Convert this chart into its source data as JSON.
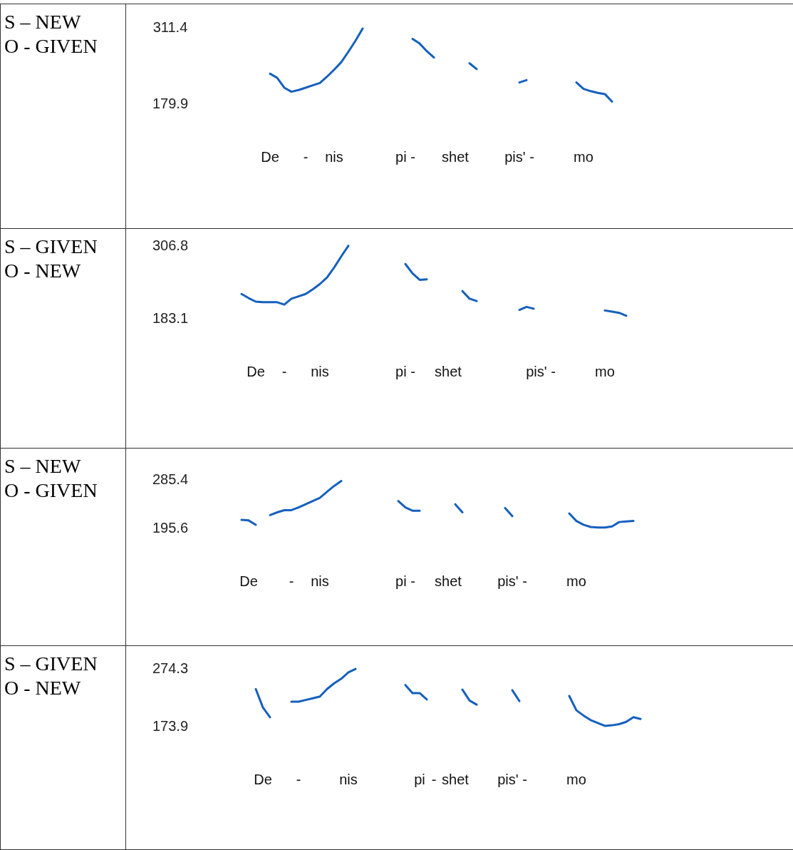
{
  "chart_data": [
    {
      "type": "line",
      "title": "S – NEW",
      "subtitle": "O - GIVEN",
      "ylim": [
        179.9,
        311.4
      ],
      "yticks": [
        179.9,
        311.4
      ],
      "categories": [
        null,
        null,
        null,
        null,
        null,
        "De",
        null,
        null,
        null,
        null,
        "-",
        null,
        null,
        null,
        "nis",
        null,
        null,
        null,
        null,
        null,
        null,
        null,
        null,
        null,
        "pi -",
        null,
        null,
        null,
        null,
        null,
        null,
        "shet",
        null,
        null,
        null,
        null,
        null,
        null,
        null,
        null,
        "pis' -",
        null,
        null,
        null,
        null,
        null,
        null,
        null,
        null,
        "mo",
        null,
        null,
        null,
        null,
        null,
        null,
        null,
        null
      ],
      "series": [
        {
          "color": "#1560bd",
          "values": [
            null,
            null,
            null,
            null,
            null,
            231,
            224,
            207,
            200,
            203,
            207,
            211,
            215,
            226,
            238,
            251,
            269,
            288,
            309,
            null,
            null,
            null,
            null,
            null,
            null,
            291,
            283,
            270,
            259,
            null,
            null,
            null,
            null,
            249,
            239,
            null,
            null,
            null,
            null,
            null,
            216,
            220,
            null,
            null,
            null,
            null,
            null,
            null,
            216,
            205,
            201,
            198,
            196,
            183,
            null,
            null,
            null,
            null
          ]
        }
      ]
    },
    {
      "type": "line",
      "title": "S – GIVEN",
      "subtitle": "O - NEW",
      "ylim": [
        183.1,
        306.8
      ],
      "yticks": [
        183.1,
        306.8
      ],
      "categories": [
        null,
        null,
        null,
        "De",
        null,
        null,
        null,
        "-",
        null,
        null,
        null,
        null,
        "nis",
        null,
        null,
        null,
        null,
        null,
        null,
        null,
        null,
        null,
        null,
        null,
        "pi -",
        null,
        null,
        null,
        null,
        null,
        "shet",
        null,
        null,
        null,
        null,
        null,
        null,
        null,
        null,
        null,
        null,
        null,
        null,
        "pis' -",
        null,
        null,
        null,
        null,
        null,
        null,
        null,
        null,
        "mo",
        null,
        null,
        null,
        null,
        null
      ],
      "series": [
        {
          "color": "#1560bd",
          "values": [
            null,
            224,
            217,
            211,
            210,
            210,
            210,
            206,
            216,
            220,
            224,
            232,
            241,
            252,
            269,
            288,
            306,
            null,
            null,
            null,
            null,
            null,
            null,
            null,
            275,
            259,
            248,
            249,
            null,
            null,
            null,
            null,
            229,
            216,
            212,
            null,
            null,
            null,
            null,
            null,
            197,
            202,
            199,
            null,
            null,
            null,
            null,
            null,
            null,
            null,
            null,
            null,
            196,
            194,
            192,
            187,
            null,
            null
          ]
        }
      ]
    },
    {
      "type": "line",
      "title": "S – NEW",
      "subtitle": "O - GIVEN",
      "ylim": [
        195.6,
        285.4
      ],
      "yticks": [
        195.6,
        285.4
      ],
      "categories": [
        null,
        null,
        "De",
        null,
        null,
        null,
        null,
        null,
        "-",
        null,
        null,
        null,
        "nis",
        null,
        null,
        null,
        null,
        null,
        null,
        null,
        null,
        null,
        null,
        null,
        "pi -",
        null,
        null,
        null,
        null,
        null,
        "shet",
        null,
        null,
        null,
        null,
        null,
        null,
        null,
        null,
        "pis' -",
        null,
        null,
        null,
        null,
        null,
        null,
        null,
        null,
        "mo",
        null,
        null,
        null,
        null,
        null,
        null,
        null,
        null,
        null
      ],
      "series": [
        {
          "color": "#1560bd",
          "values": [
            null,
            210,
            209,
            201,
            null,
            219,
            224,
            228,
            228,
            233,
            239,
            245,
            251,
            262,
            273,
            282,
            null,
            null,
            null,
            null,
            null,
            null,
            null,
            245,
            233,
            227,
            227,
            null,
            null,
            null,
            null,
            239,
            224,
            null,
            null,
            null,
            null,
            null,
            232,
            217,
            null,
            null,
            null,
            null,
            null,
            null,
            null,
            222,
            208,
            201,
            197,
            196,
            196,
            198,
            206,
            207,
            208,
            null
          ]
        }
      ]
    },
    {
      "type": "line",
      "title": "S – GIVEN",
      "subtitle": "O - NEW",
      "ylim": [
        173.9,
        274.3
      ],
      "yticks": [
        173.9,
        274.3
      ],
      "categories": [
        null,
        null,
        null,
        null,
        "De",
        null,
        null,
        null,
        null,
        "-",
        null,
        null,
        null,
        null,
        null,
        null,
        "nis",
        null,
        null,
        null,
        null,
        null,
        null,
        null,
        null,
        null,
        "pi",
        null,
        "-",
        null,
        null,
        "shet",
        null,
        null,
        null,
        null,
        null,
        null,
        null,
        "pis' -",
        null,
        null,
        null,
        null,
        null,
        null,
        null,
        null,
        "mo",
        null,
        null,
        null,
        null,
        null,
        null,
        null,
        null,
        null
      ],
      "series": [
        {
          "color": "#1560bd",
          "values": [
            null,
            null,
            null,
            238,
            206,
            189,
            null,
            null,
            216,
            216,
            219,
            222,
            225,
            238,
            248,
            256,
            267,
            273,
            null,
            null,
            null,
            null,
            null,
            null,
            245,
            231,
            231,
            220,
            null,
            null,
            null,
            null,
            237,
            218,
            211,
            null,
            null,
            null,
            null,
            236,
            217,
            null,
            null,
            null,
            null,
            null,
            null,
            226,
            201,
            192,
            184,
            179,
            174,
            175,
            177,
            181,
            189,
            186
          ]
        }
      ]
    }
  ]
}
